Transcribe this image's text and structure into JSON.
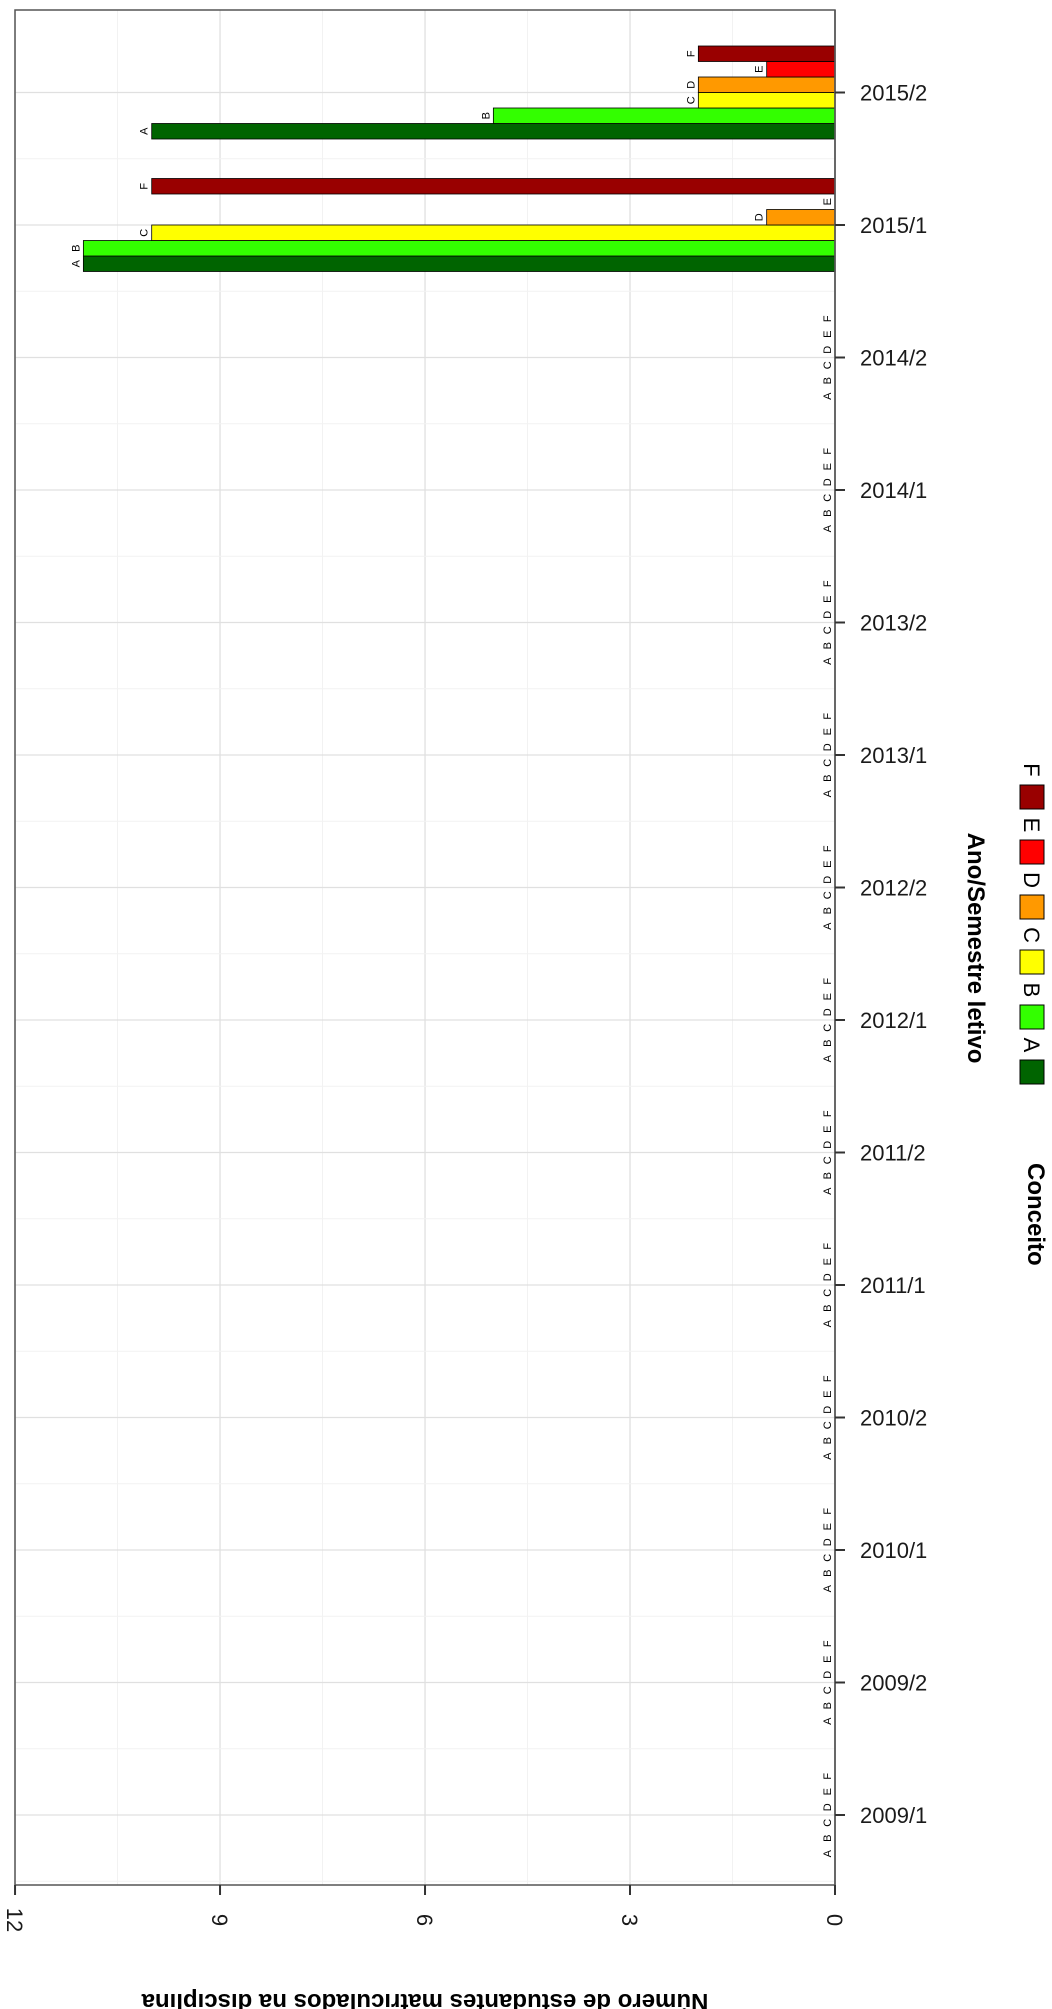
{
  "chart_data": {
    "type": "bar",
    "orientation": "rotated 90° clockwise (categories along the right, values to the left)",
    "xlabel": "Ano/Semestre letivo",
    "ylabel": "Número de estudantes matriculados na disciplina",
    "ylim": [
      0,
      12
    ],
    "yticks": [
      "0",
      "3",
      "6",
      "9",
      "12"
    ],
    "grid": true,
    "legend_title": "Conceito",
    "legend_position": "bottom",
    "categories": [
      "2009/1",
      "2009/2",
      "2010/1",
      "2010/2",
      "2011/1",
      "2011/2",
      "2012/1",
      "2012/2",
      "2013/1",
      "2013/2",
      "2014/1",
      "2014/2",
      "2015/1",
      "2015/2"
    ],
    "series": [
      {
        "name": "A",
        "color": "#006400",
        "values": [
          0,
          0,
          0,
          0,
          0,
          0,
          0,
          0,
          0,
          0,
          0,
          0,
          11,
          10
        ]
      },
      {
        "name": "B",
        "color": "#33ff00",
        "values": [
          0,
          0,
          0,
          0,
          0,
          0,
          0,
          0,
          0,
          0,
          0,
          0,
          11,
          5
        ]
      },
      {
        "name": "C",
        "color": "#ffff00",
        "values": [
          0,
          0,
          0,
          0,
          0,
          0,
          0,
          0,
          0,
          0,
          0,
          0,
          10,
          2
        ]
      },
      {
        "name": "D",
        "color": "#ff9900",
        "values": [
          0,
          0,
          0,
          0,
          0,
          0,
          0,
          0,
          0,
          0,
          0,
          0,
          1,
          2
        ]
      },
      {
        "name": "E",
        "color": "#ff0000",
        "values": [
          0,
          0,
          0,
          0,
          0,
          0,
          0,
          0,
          0,
          0,
          0,
          0,
          0,
          1
        ]
      },
      {
        "name": "F",
        "color": "#990000",
        "values": [
          0,
          0,
          0,
          0,
          0,
          0,
          0,
          0,
          0,
          0,
          0,
          0,
          10,
          2
        ]
      }
    ]
  }
}
